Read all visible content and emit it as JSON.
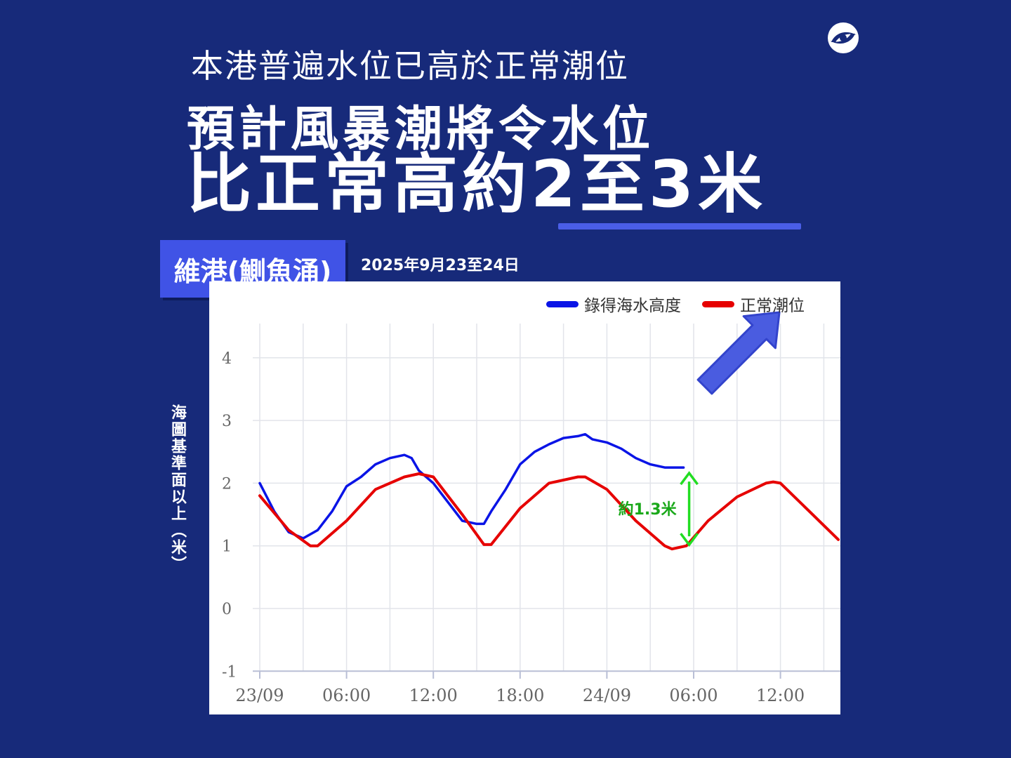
{
  "header": {
    "subheadline": "本港普遍水位已高於正常潮位",
    "headline_line1": "預計風暴潮將令水位",
    "headline_line2_prefix": "比正常高約",
    "headline_line2_accent": "2至3米"
  },
  "station": {
    "name": "維港(鰂魚涌)",
    "date": "2025年9月23至24日"
  },
  "colors": {
    "background": "#172a7a",
    "accent": "#4053e6",
    "recorded": "#0a14e6",
    "normal": "#e60000",
    "annotation": "#22dd22",
    "arrow": "#4a5ce0"
  },
  "icons": [
    "logo-icon",
    "up-right-arrow-icon"
  ],
  "chart_data": {
    "type": "line",
    "ylabel": "海圖基準面以上（米）",
    "xlabel": "",
    "x_unit": "hours since 23/09 00:00",
    "xlim": [
      0,
      40
    ],
    "ylim": [
      -1,
      4.5
    ],
    "yticks": [
      4,
      3,
      2,
      1,
      0,
      -1
    ],
    "xticks": [
      {
        "x": 0,
        "label": "23/09"
      },
      {
        "x": 6,
        "label": "06:00"
      },
      {
        "x": 12,
        "label": "12:00"
      },
      {
        "x": 18,
        "label": "18:00"
      },
      {
        "x": 24,
        "label": "24/09"
      },
      {
        "x": 30,
        "label": "06:00"
      },
      {
        "x": 36,
        "label": "12:00"
      }
    ],
    "grid": true,
    "legend_position": "top-right",
    "series": [
      {
        "name": "錄得海水高度",
        "color": "#0a14e6",
        "x": [
          0,
          1,
          2,
          3,
          4,
          5,
          6,
          7,
          8,
          9,
          10,
          10.5,
          11,
          12,
          13,
          14,
          15,
          15.5,
          16,
          17,
          18,
          19,
          20,
          21,
          22,
          22.5,
          23,
          24,
          25,
          26,
          27,
          28,
          29,
          29.3
        ],
        "y": [
          2.0,
          1.55,
          1.22,
          1.12,
          1.25,
          1.55,
          1.95,
          2.1,
          2.3,
          2.4,
          2.45,
          2.4,
          2.2,
          2.0,
          1.7,
          1.4,
          1.35,
          1.35,
          1.55,
          1.9,
          2.3,
          2.5,
          2.62,
          2.72,
          2.75,
          2.78,
          2.7,
          2.65,
          2.55,
          2.4,
          2.3,
          2.25,
          2.25,
          2.25
        ]
      },
      {
        "name": "正常潮位",
        "color": "#e60000",
        "x": [
          0,
          2,
          3.5,
          4,
          6,
          8,
          10,
          11,
          12,
          14,
          15.5,
          16,
          18,
          20,
          22,
          22.5,
          24,
          26,
          28,
          28.5,
          29.5,
          31,
          33,
          35,
          35.5,
          36,
          38,
          40
        ],
        "y": [
          1.8,
          1.25,
          1.0,
          1.0,
          1.4,
          1.9,
          2.1,
          2.15,
          2.1,
          1.5,
          1.02,
          1.02,
          1.6,
          2.0,
          2.1,
          2.1,
          1.9,
          1.4,
          1.0,
          0.95,
          1.0,
          1.4,
          1.78,
          2.0,
          2.02,
          2.0,
          1.55,
          1.1
        ]
      }
    ],
    "annotations": [
      {
        "text": "約1.3米",
        "type": "difference",
        "x": 29.3,
        "y_from": 0.95,
        "y_to": 2.25,
        "color": "#22dd22"
      }
    ]
  }
}
